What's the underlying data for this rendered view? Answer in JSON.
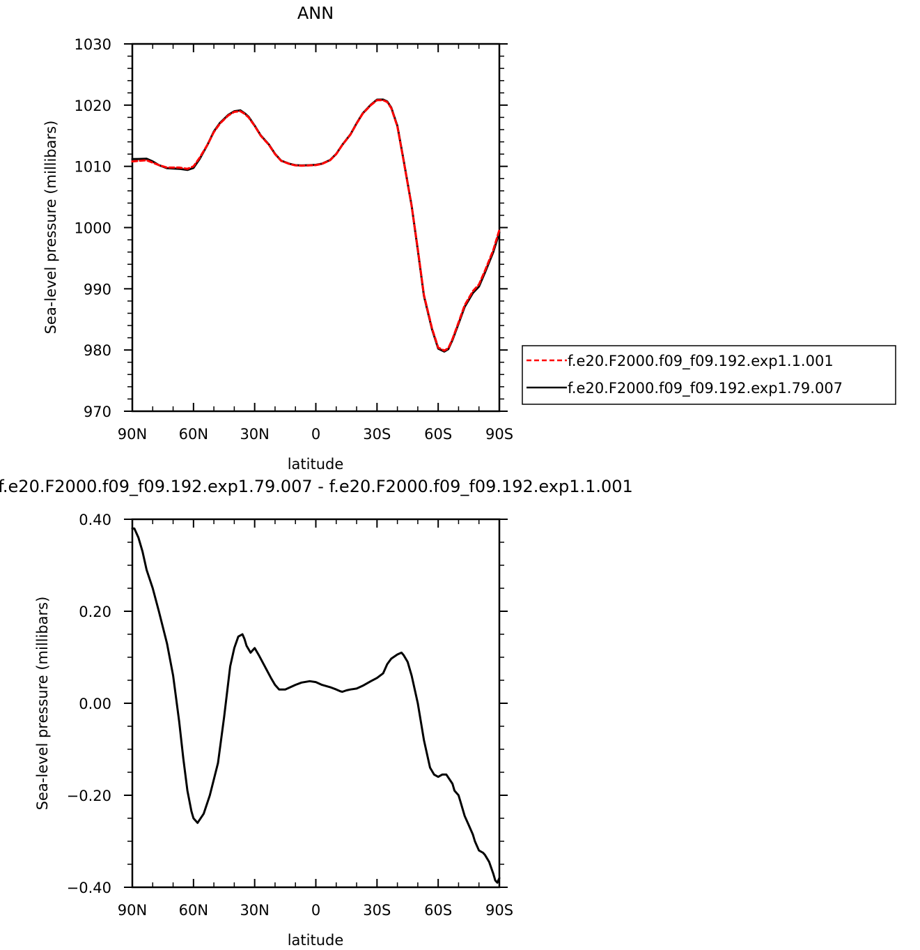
{
  "chart_data": [
    {
      "type": "line",
      "title": "ANN",
      "xlabel": "latitude",
      "ylabel": "Sea-level pressure (millibars)",
      "xlim": [
        90,
        -90
      ],
      "ylim": [
        970,
        1030
      ],
      "xticks": [
        {
          "value": 90,
          "label": "90N"
        },
        {
          "value": 60,
          "label": "60N"
        },
        {
          "value": 30,
          "label": "30N"
        },
        {
          "value": 0,
          "label": "0"
        },
        {
          "value": -30,
          "label": "30S"
        },
        {
          "value": -60,
          "label": "60S"
        },
        {
          "value": -90,
          "label": "90S"
        }
      ],
      "yticks": [
        {
          "value": 1030,
          "label": "1030"
        },
        {
          "value": 1020,
          "label": "1020"
        },
        {
          "value": 1010,
          "label": "1010"
        },
        {
          "value": 1000,
          "label": "1000"
        },
        {
          "value": 990,
          "label": "990"
        },
        {
          "value": 980,
          "label": "980"
        },
        {
          "value": 970,
          "label": "970"
        }
      ],
      "legend_position": "right",
      "x": [
        90,
        87,
        83,
        80,
        77,
        73,
        70,
        67,
        63,
        60,
        57,
        53,
        50,
        47,
        43,
        40,
        37,
        35,
        33,
        30,
        27,
        23,
        20,
        17,
        13,
        10,
        7,
        3,
        0,
        -3,
        -7,
        -10,
        -13,
        -17,
        -20,
        -23,
        -27,
        -30,
        -33,
        -35,
        -37,
        -40,
        -43,
        -47,
        -50,
        -53,
        -57,
        -60,
        -63,
        -65,
        -67,
        -70,
        -73,
        -77,
        -80,
        -83,
        -87,
        -90
      ],
      "series": [
        {
          "name": "f.e20.F2000.f09_f09.192.exp1.1.001",
          "color": "#ff0000",
          "dash": "dashed",
          "values": [
            1010.8,
            1010.9,
            1011.0,
            1010.6,
            1010.2,
            1009.8,
            1009.8,
            1009.8,
            1009.6,
            1010.0,
            1011.4,
            1013.6,
            1015.6,
            1017.0,
            1018.3,
            1018.9,
            1019.0,
            1018.6,
            1018.0,
            1016.6,
            1015.0,
            1013.5,
            1012.0,
            1010.9,
            1010.4,
            1010.15,
            1010.1,
            1010.15,
            1010.2,
            1010.4,
            1011.0,
            1012.0,
            1013.5,
            1015.2,
            1017.0,
            1018.6,
            1020.0,
            1020.8,
            1020.8,
            1020.5,
            1019.5,
            1016.5,
            1011.0,
            1003.5,
            996.5,
            989.0,
            983.5,
            980.4,
            979.9,
            980.3,
            981.8,
            984.5,
            987.3,
            989.6,
            990.7,
            993.0,
            996.3,
            999.6
          ]
        },
        {
          "name": "f.e20.F2000.f09_f09.192.exp1.79.007",
          "color": "#000000",
          "dash": "solid",
          "values": [
            1011.18,
            1011.2,
            1011.25,
            1010.8,
            1010.2,
            1009.7,
            1009.65,
            1009.6,
            1009.42,
            1009.75,
            1011.2,
            1013.6,
            1015.7,
            1017.1,
            1018.4,
            1019.0,
            1019.15,
            1018.7,
            1018.1,
            1016.65,
            1015.05,
            1013.55,
            1012.05,
            1010.93,
            1010.43,
            1010.19,
            1010.14,
            1010.19,
            1010.25,
            1010.43,
            1011.03,
            1012.03,
            1013.53,
            1015.23,
            1017.04,
            1018.65,
            1020.06,
            1020.89,
            1020.9,
            1020.6,
            1019.6,
            1016.6,
            1011.08,
            1003.54,
            996.36,
            988.85,
            983.35,
            980.24,
            979.75,
            980.15,
            981.64,
            984.3,
            987.05,
            989.3,
            990.37,
            992.7,
            995.98,
            999.22
          ]
        }
      ]
    },
    {
      "type": "line",
      "title": "f.e20.F2000.f09_f09.192.exp1.79.007 - f.e20.F2000.f09_f09.192.exp1.1.001",
      "xlabel": "latitude",
      "ylabel": "Sea-level pressure (millibars)",
      "xlim": [
        90,
        -90
      ],
      "ylim": [
        -0.4,
        0.4
      ],
      "xticks": [
        {
          "value": 90,
          "label": "90N"
        },
        {
          "value": 60,
          "label": "60N"
        },
        {
          "value": 30,
          "label": "30N"
        },
        {
          "value": 0,
          "label": "0"
        },
        {
          "value": -30,
          "label": "30S"
        },
        {
          "value": -60,
          "label": "60S"
        },
        {
          "value": -90,
          "label": "90S"
        }
      ],
      "yticks": [
        {
          "value": 0.4,
          "label": "0.40"
        },
        {
          "value": 0.2,
          "label": "0.20"
        },
        {
          "value": 0.0,
          "label": "0.00"
        },
        {
          "value": -0.2,
          "label": "−0.20"
        },
        {
          "value": -0.4,
          "label": "−0.40"
        }
      ],
      "x": [
        90,
        89,
        87,
        85,
        83,
        80,
        77,
        73,
        70,
        67,
        65,
        63,
        61,
        60,
        58,
        55,
        52,
        48,
        45,
        42,
        40,
        38,
        36,
        35,
        34,
        32,
        31,
        30,
        28,
        25,
        22,
        20,
        18,
        15,
        10,
        7,
        3,
        0,
        -3,
        -7,
        -10,
        -12,
        -13,
        -15,
        -17,
        -20,
        -23,
        -27,
        -30,
        -33,
        -35,
        -37,
        -40,
        -42,
        -43,
        -45,
        -47,
        -50,
        -53,
        -56,
        -58,
        -60,
        -62,
        -64,
        -67,
        -68,
        -70,
        -71,
        -72,
        -73,
        -75,
        -77,
        -78,
        -80,
        -82,
        -83,
        -85,
        -87,
        -88,
        -89,
        -90
      ],
      "series": [
        {
          "name": "",
          "color": "#000000",
          "dash": "solid",
          "values": [
            0.38,
            0.38,
            0.36,
            0.33,
            0.29,
            0.25,
            0.2,
            0.13,
            0.06,
            -0.04,
            -0.12,
            -0.19,
            -0.235,
            -0.25,
            -0.26,
            -0.24,
            -0.2,
            -0.13,
            -0.03,
            0.08,
            0.12,
            0.145,
            0.15,
            0.14,
            0.125,
            0.11,
            0.115,
            0.12,
            0.105,
            0.08,
            0.055,
            0.04,
            0.03,
            0.03,
            0.04,
            0.045,
            0.048,
            0.046,
            0.04,
            0.035,
            0.03,
            0.026,
            0.025,
            0.028,
            0.03,
            0.032,
            0.038,
            0.048,
            0.055,
            0.065,
            0.085,
            0.097,
            0.106,
            0.11,
            0.105,
            0.09,
            0.06,
            0.0,
            -0.08,
            -0.14,
            -0.155,
            -0.16,
            -0.155,
            -0.155,
            -0.175,
            -0.19,
            -0.2,
            -0.215,
            -0.23,
            -0.245,
            -0.265,
            -0.285,
            -0.3,
            -0.32,
            -0.325,
            -0.33,
            -0.345,
            -0.37,
            -0.385,
            -0.39,
            -0.38
          ]
        }
      ]
    }
  ]
}
